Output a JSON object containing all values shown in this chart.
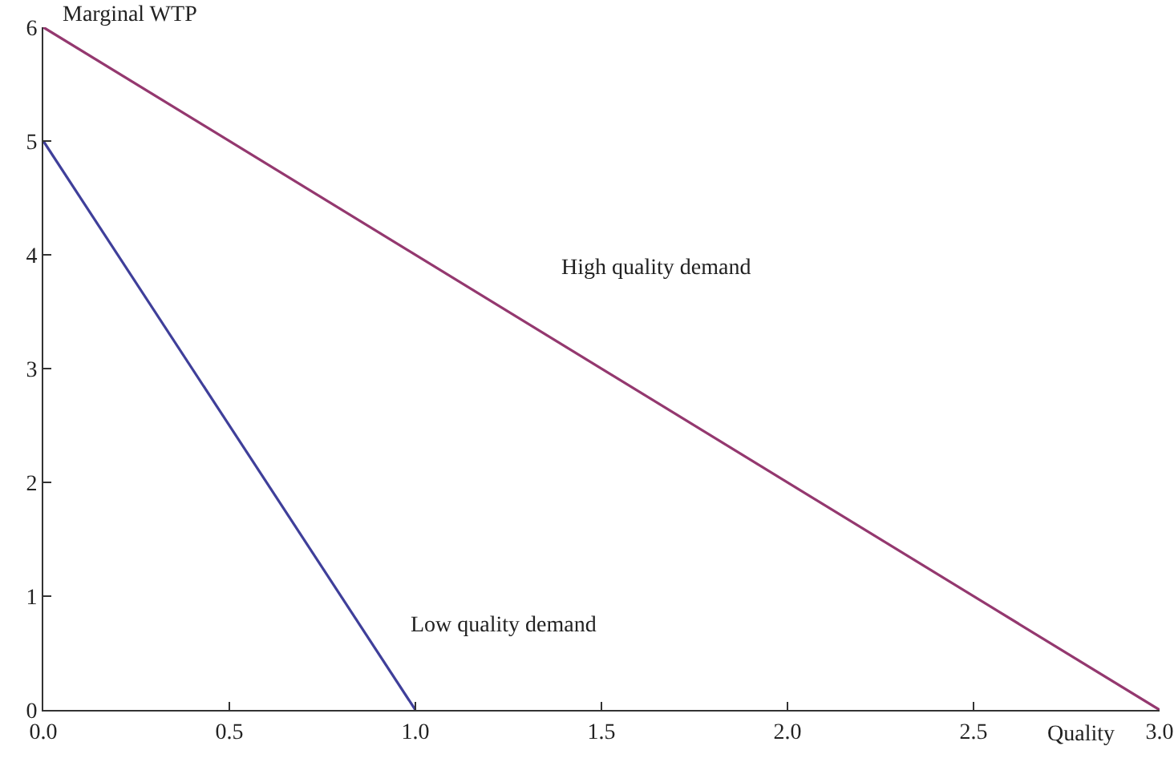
{
  "chart_data": {
    "type": "line",
    "xlabel": "Quality",
    "ylabel": "Marginal WTP",
    "series": [
      {
        "name": "Low quality demand",
        "color": "#3f3f9a",
        "x": [
          0,
          1
        ],
        "values": [
          5,
          0
        ]
      },
      {
        "name": "High quality demand",
        "color": "#94386f",
        "x": [
          0,
          3
        ],
        "values": [
          6,
          0
        ]
      }
    ],
    "xlim": [
      0,
      3
    ],
    "xticks": [
      {
        "value": 0,
        "label": "0.0"
      },
      0.5,
      {
        "value": 1,
        "label": "1.0"
      },
      1.5,
      {
        "value": 2,
        "label": "2.0"
      },
      2.5,
      {
        "value": 3,
        "label": "3.0"
      }
    ],
    "ylim": [
      0,
      6
    ],
    "yticks": [
      0,
      1,
      2,
      3,
      4,
      5,
      6
    ],
    "grid": false,
    "legend": false,
    "marker": "none",
    "line_style": "solid"
  }
}
